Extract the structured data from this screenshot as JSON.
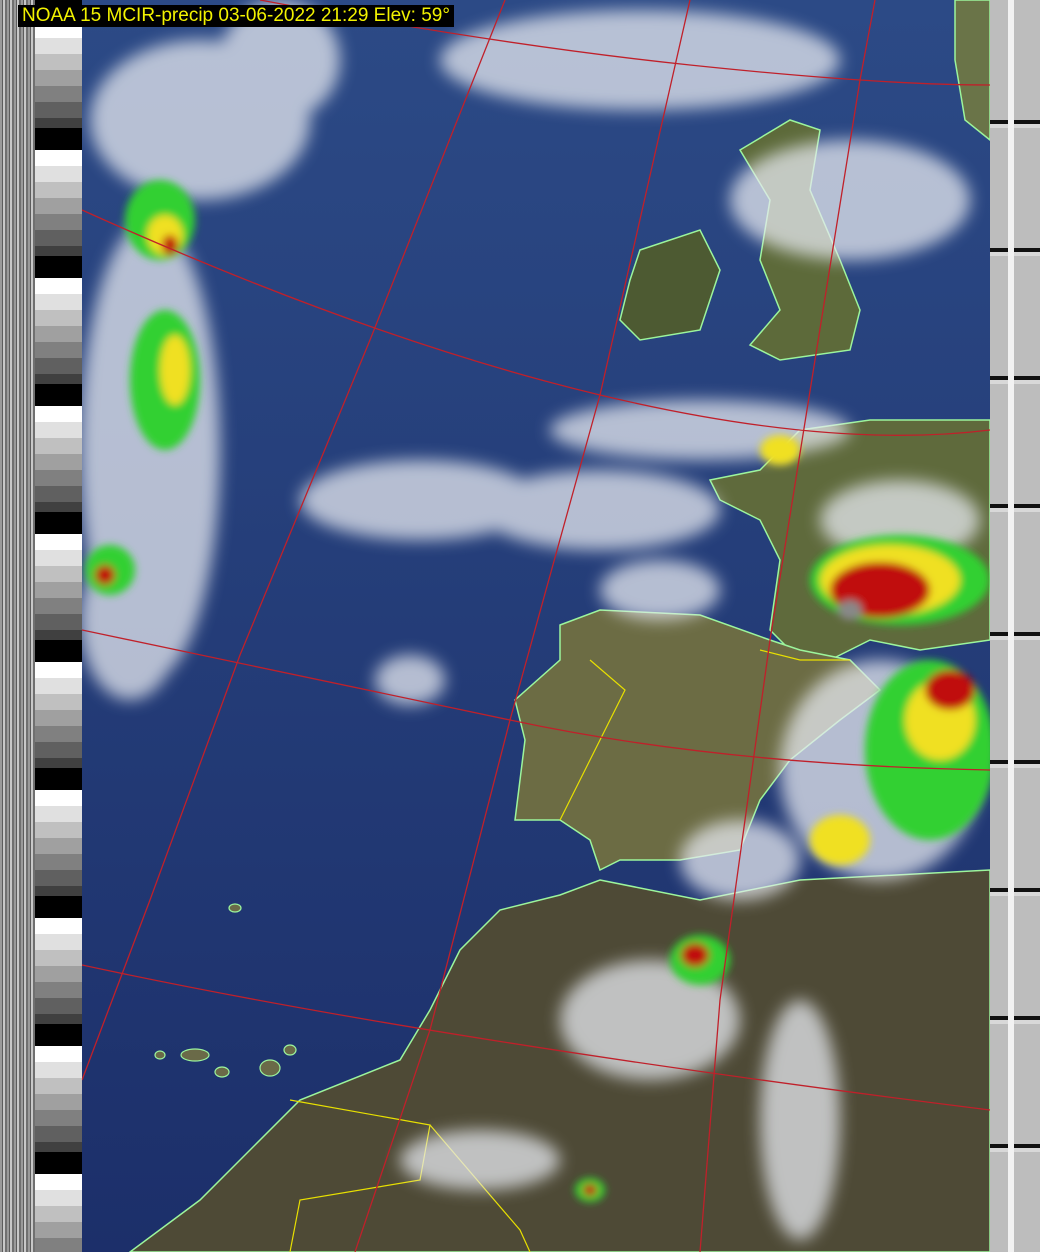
{
  "title": "NOAA 15 MCIR-precip 03-06-2022 21:29 Elev: 59°",
  "colors": {
    "title_text": "#f2f200",
    "title_background": "#000000",
    "ocean": "#1f3570",
    "land": "#5f6a3c",
    "desert": "#4e4a36",
    "graticule": "#c0202a",
    "coastline": "#9cf59c",
    "borders": "#e8e000",
    "precip_light": "#30d030",
    "precip_moderate": "#f0e020",
    "precip_heavy": "#c01010"
  }
}
